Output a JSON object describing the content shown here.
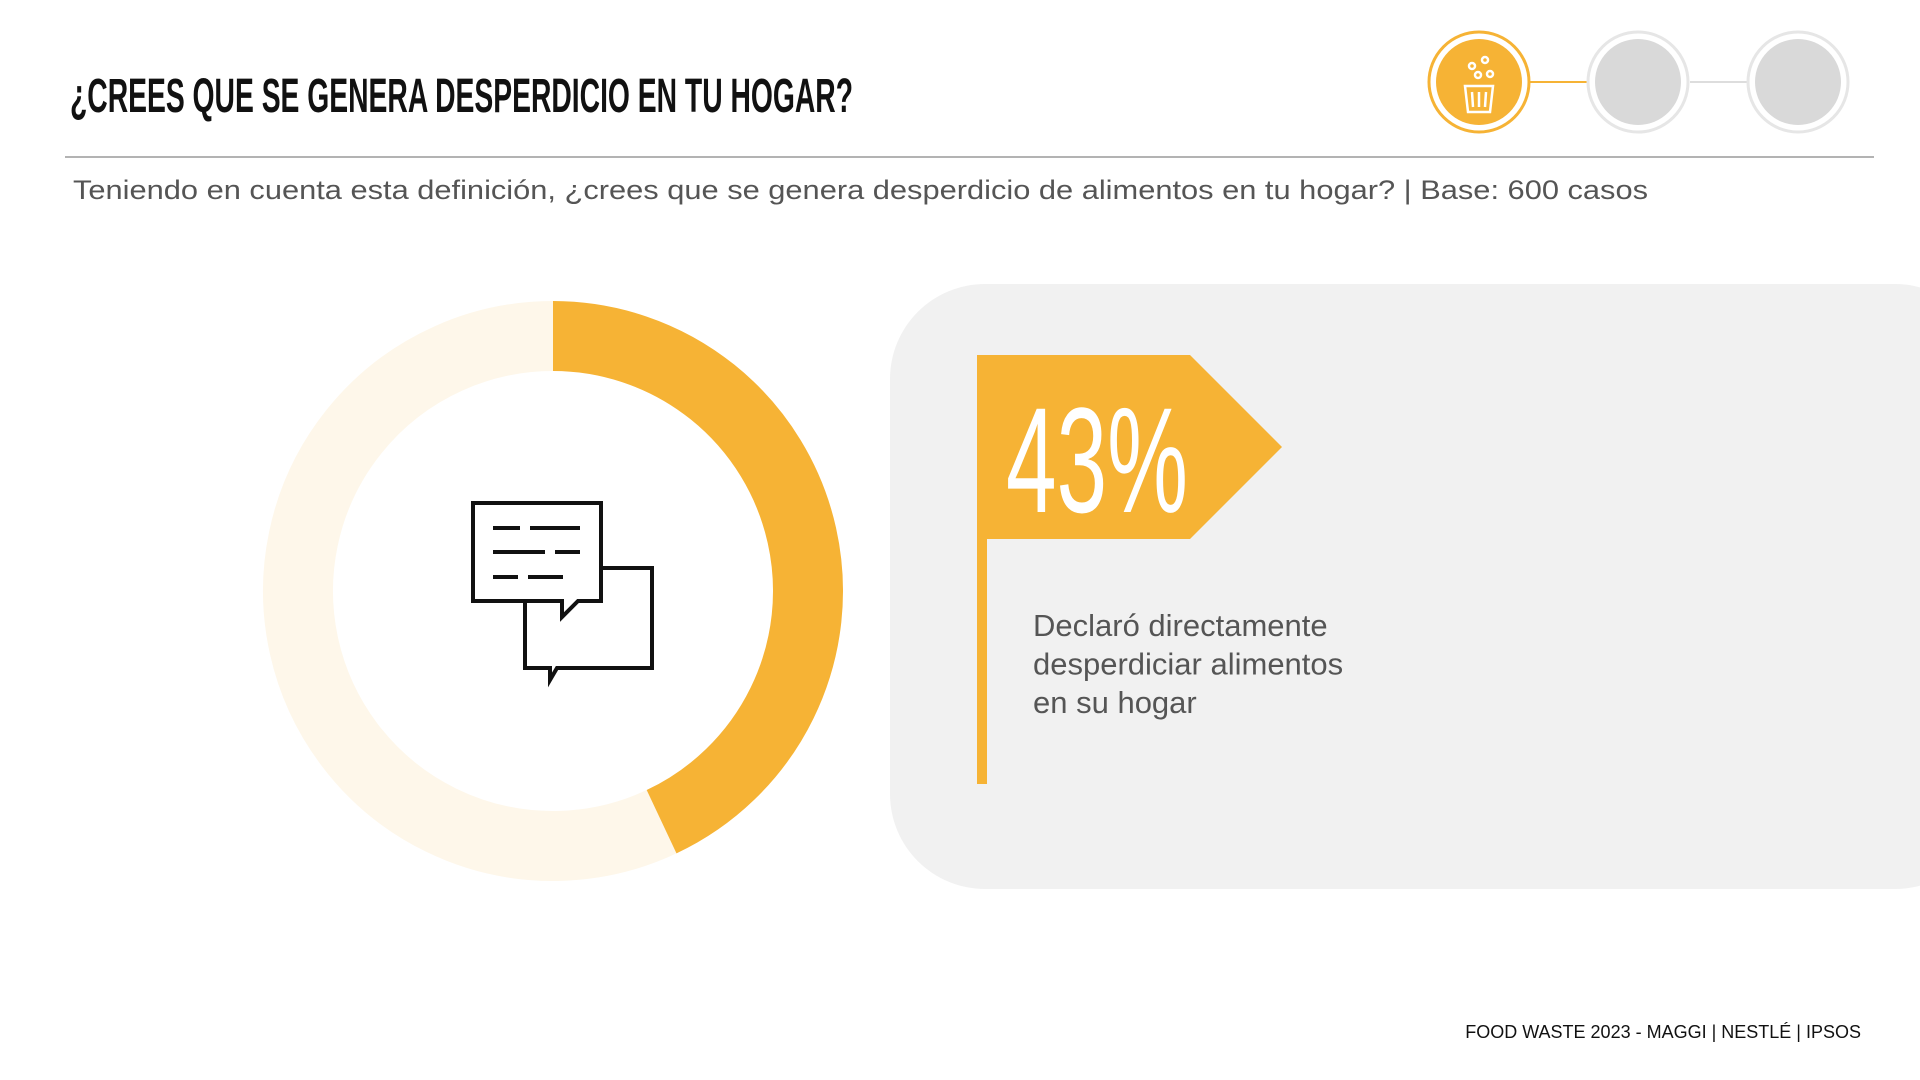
{
  "chart_data": {
    "type": "donut",
    "title": "¿CREES QUE SE GENERA DESPERDICIO EN TU HOGAR?",
    "subtitle": "Teniendo en cuenta esta definición, ¿crees que se genera desperdicio de alimentos en tu hogar? | Base: 600 casos",
    "values": [
      43,
      57
    ],
    "value_labels": [
      "43%",
      null
    ],
    "colors": [
      "#F6B335",
      "#FEF7EA"
    ],
    "annotation": [
      "Declaró directamente",
      "desperdiciar alimentos",
      "en su hogar"
    ]
  },
  "footer": "FOOD WASTE 2023 - MAGGI | NESTLÉ | IPSOS"
}
